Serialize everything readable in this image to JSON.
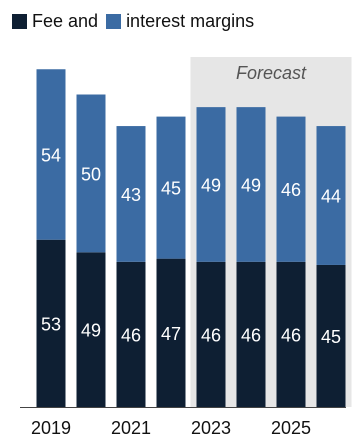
{
  "legend": {
    "items": [
      {
        "label": "Fee and",
        "color": "#0e1f33"
      },
      {
        "label": "interest margins",
        "color": "#3b6ba3"
      }
    ]
  },
  "forecast_label": "Forecast",
  "colors": {
    "fee": "#0e1f33",
    "interest": "#3b6ba3",
    "forecast_band": "#e6e6e6",
    "axis": "#444444"
  },
  "chart_data": {
    "type": "bar",
    "stacked": true,
    "categories": [
      "2019",
      "2020",
      "2021",
      "2022",
      "2023",
      "2024",
      "2025",
      "2026"
    ],
    "x_tick_labels": [
      "2019",
      "",
      "2021",
      "",
      "2023",
      "",
      "2025",
      ""
    ],
    "series": [
      {
        "name": "Fee and",
        "values": [
          53,
          49,
          46,
          47,
          46,
          46,
          46,
          45
        ]
      },
      {
        "name": "interest margins",
        "values": [
          54,
          50,
          43,
          45,
          49,
          49,
          46,
          44
        ]
      }
    ],
    "forecast_categories": [
      "2023",
      "2024",
      "2025",
      "2026"
    ],
    "ylim": [
      0,
      115
    ],
    "grid": false,
    "legend_position": "top-left"
  }
}
